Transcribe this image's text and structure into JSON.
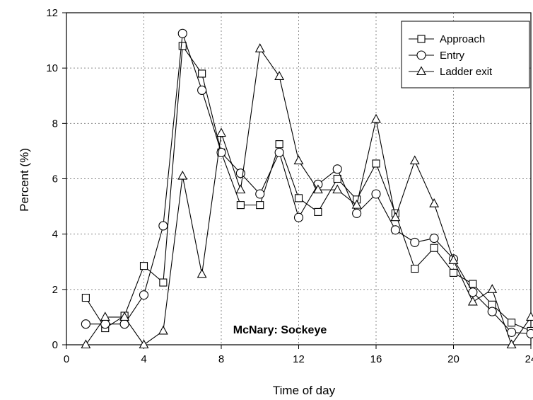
{
  "chart_data": {
    "type": "line",
    "xlabel": "Time of day",
    "ylabel": "Percent (%)",
    "annotation": "McNary: Sockeye",
    "xlim": [
      0,
      24
    ],
    "ylim": [
      0,
      12
    ],
    "xticks": [
      0,
      4,
      8,
      12,
      16,
      20,
      24
    ],
    "yticks": [
      0,
      2,
      4,
      6,
      8,
      10,
      12
    ],
    "grid": true,
    "legend_position": "top-right",
    "x": [
      1,
      2,
      3,
      4,
      5,
      6,
      7,
      8,
      9,
      10,
      11,
      12,
      13,
      14,
      15,
      16,
      17,
      18,
      19,
      20,
      21,
      22,
      23,
      24
    ],
    "series": [
      {
        "name": "Approach",
        "marker": "square",
        "values": [
          1.7,
          0.6,
          1.05,
          2.85,
          2.25,
          10.8,
          9.8,
          6.95,
          5.05,
          5.05,
          7.25,
          5.3,
          4.8,
          6.0,
          5.25,
          6.55,
          4.75,
          2.75,
          3.5,
          2.6,
          2.2,
          1.45,
          0.8,
          0.5
        ]
      },
      {
        "name": "Entry",
        "marker": "circle",
        "values": [
          0.75,
          0.75,
          0.75,
          1.8,
          4.3,
          11.25,
          9.2,
          6.95,
          6.2,
          5.45,
          6.95,
          4.6,
          5.8,
          6.35,
          4.75,
          5.45,
          4.15,
          3.7,
          3.85,
          3.1,
          1.9,
          1.2,
          0.45,
          0.4
        ]
      },
      {
        "name": "Ladder exit",
        "marker": "triangle",
        "values": [
          0.0,
          1.0,
          1.0,
          0.0,
          0.5,
          6.1,
          2.55,
          7.65,
          5.6,
          10.7,
          9.7,
          6.65,
          5.6,
          5.6,
          5.05,
          8.15,
          4.6,
          6.65,
          5.1,
          3.05,
          1.55,
          2.0,
          0.0,
          1.0
        ]
      }
    ]
  }
}
